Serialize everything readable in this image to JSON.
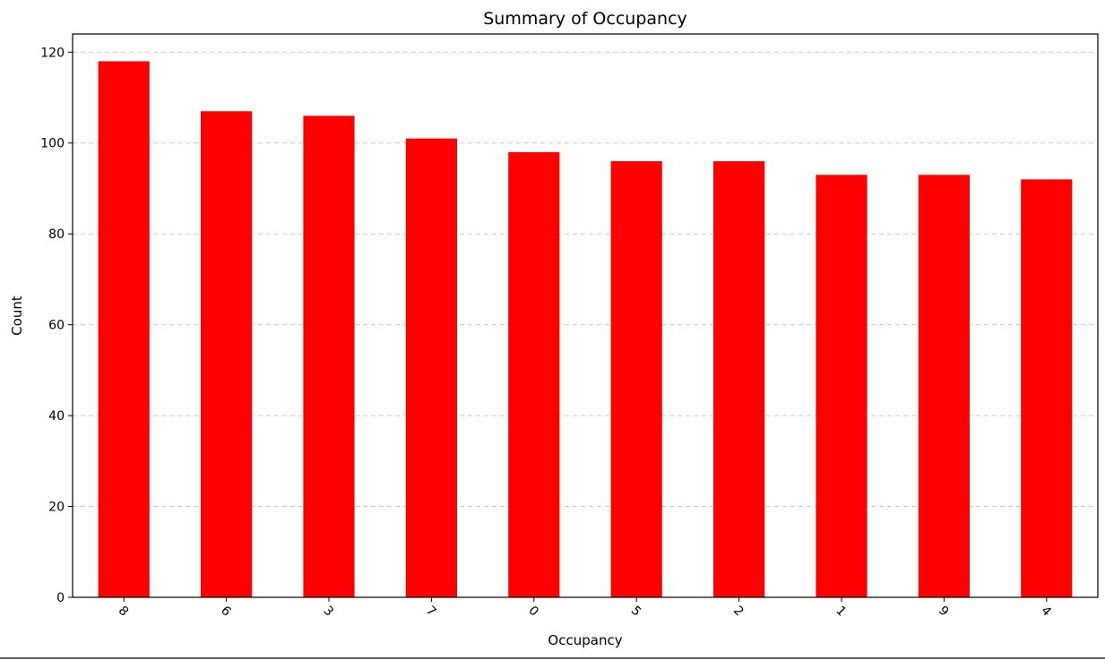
{
  "chart_data": {
    "type": "bar",
    "title": "Summary of Occupancy",
    "xlabel": "Occupancy",
    "ylabel": "Count",
    "categories": [
      "8",
      "6",
      "3",
      "7",
      "0",
      "5",
      "2",
      "1",
      "9",
      "4"
    ],
    "values": [
      118,
      107,
      106,
      101,
      98,
      96,
      96,
      93,
      93,
      92
    ],
    "ylim": [
      0,
      124
    ],
    "yticks": [
      "0",
      "20",
      "40",
      "60",
      "80",
      "100",
      "120"
    ],
    "xtick_rotation": 45,
    "grid": "y-dashed",
    "bar_color": "#ff0000",
    "legend": "none"
  }
}
